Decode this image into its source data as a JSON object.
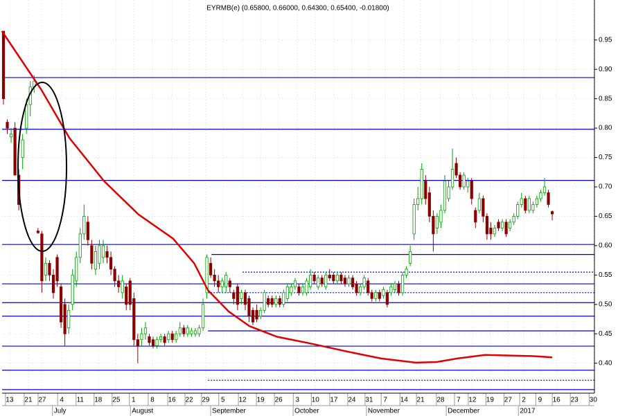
{
  "chart_data": {
    "type": "candlestick",
    "title": "EYRMB(e) (0.65800, 0.66000, 0.64300, 0.65400, -0.01800)",
    "xlim": [
      -0.36,
      154
    ],
    "ylim": [
      0.349,
      1.018
    ],
    "grid": true,
    "yticks": [
      {
        "value": 0.4,
        "label": "0.40"
      },
      0.45,
      {
        "value": 0.5,
        "label": "0.50"
      },
      0.55,
      {
        "value": 0.6,
        "label": "0.60"
      },
      0.65,
      {
        "value": 0.7,
        "label": "0.70"
      },
      0.75,
      {
        "value": 0.8,
        "label": "0.80"
      },
      0.85,
      {
        "value": 0.9,
        "label": "0.90"
      },
      0.95
    ],
    "xticks": [
      {
        "value": 1.6,
        "label": "13"
      },
      {
        "value": 6.5,
        "label": "21"
      },
      {
        "value": 10.1,
        "label": "27"
      },
      {
        "value": 15.2,
        "label": "4"
      },
      {
        "value": 20.0,
        "label": "11"
      },
      {
        "value": 24.7,
        "label": "18"
      },
      {
        "value": 29.4,
        "label": "25"
      },
      {
        "value": 33.9,
        "label": "1"
      },
      {
        "value": 38.8,
        "label": "8"
      },
      {
        "value": 43.9,
        "label": "16"
      },
      {
        "value": 48.4,
        "label": "22"
      },
      {
        "value": 52.7,
        "label": "29"
      },
      {
        "value": 57.2,
        "label": "5"
      },
      {
        "value": 62.3,
        "label": "12"
      },
      {
        "value": 67.0,
        "label": "19"
      },
      {
        "value": 71.7,
        "label": "26"
      },
      {
        "value": 76.6,
        "label": "3"
      },
      {
        "value": 81.3,
        "label": "10"
      },
      {
        "value": 86.1,
        "label": "17"
      },
      {
        "value": 90.8,
        "label": "24"
      },
      {
        "value": 95.3,
        "label": "31"
      },
      {
        "value": 99.5,
        "label": "7"
      },
      {
        "value": 104.4,
        "label": "14"
      },
      {
        "value": 108.7,
        "label": "21"
      },
      {
        "value": 113.9,
        "label": "28"
      },
      {
        "value": 118.6,
        "label": "7"
      },
      {
        "value": 122.2,
        "label": "12"
      },
      {
        "value": 126.8,
        "label": "19"
      },
      {
        "value": 131.5,
        "label": "27"
      },
      {
        "value": 135.6,
        "label": "2"
      },
      {
        "value": 139.8,
        "label": "9"
      },
      {
        "value": 144.1,
        "label": "16"
      },
      {
        "value": 148.8,
        "label": "23"
      },
      {
        "value": 153.7,
        "label": "30"
      }
    ],
    "month_ticks": [
      {
        "value": 13.5,
        "label": "July"
      },
      {
        "value": 33.8,
        "label": "August"
      },
      {
        "value": 54.7,
        "label": "September"
      },
      {
        "value": 76.2,
        "label": "October"
      },
      {
        "value": 95.3,
        "label": "November"
      },
      {
        "value": 116.1,
        "label": "December"
      },
      {
        "value": 134.9,
        "label": "2017"
      }
    ],
    "series": [
      {
        "type": "candlestick",
        "up_color": "#00a000",
        "down_color": "#8b0000",
        "open": [
          0.965,
          0.81,
          0.785,
          0.8,
          0.72,
          0.75,
          0.8,
          0.84,
          0.87,
          0.625,
          0.62,
          0.55,
          0.57,
          0.55,
          0.58,
          0.53,
          0.5,
          0.46,
          0.5,
          0.54,
          0.58,
          0.62,
          0.64,
          0.6,
          0.56,
          0.57,
          0.58,
          0.59,
          0.58,
          0.56,
          0.54,
          0.52,
          0.53,
          0.54,
          0.51,
          0.44,
          0.44,
          0.45,
          0.445,
          0.44,
          0.43,
          0.44,
          0.445,
          0.44,
          0.45,
          0.44,
          0.45,
          0.46,
          0.45,
          0.45,
          0.45,
          0.45,
          0.46,
          0.52,
          0.57,
          0.55,
          0.54,
          0.53,
          0.53,
          0.54,
          0.52,
          0.53,
          0.51,
          0.52,
          0.51,
          0.49,
          0.49,
          0.48,
          0.49,
          0.51,
          0.51,
          0.5,
          0.51,
          0.5,
          0.51,
          0.52,
          0.53,
          0.53,
          0.52,
          0.52,
          0.53,
          0.55,
          0.53,
          0.545,
          0.53,
          0.55,
          0.55,
          0.54,
          0.55,
          0.545,
          0.535,
          0.545,
          0.535,
          0.52,
          0.53,
          0.54,
          0.52,
          0.51,
          0.52,
          0.515,
          0.52,
          0.52,
          0.525,
          0.535,
          0.52,
          0.55,
          0.57,
          0.62,
          0.67,
          0.68,
          0.71,
          0.69,
          0.65,
          0.63,
          0.64,
          0.66,
          0.68,
          0.7,
          0.74,
          0.72,
          0.7,
          0.7,
          0.71,
          0.66,
          0.66,
          0.68,
          0.65,
          0.63,
          0.62,
          0.64,
          0.63,
          0.64,
          0.63,
          0.64,
          0.65,
          0.67,
          0.68,
          0.66,
          0.66,
          0.67,
          0.68,
          0.69,
          0.69,
          0.658
        ],
        "high": [
          0.965,
          0.815,
          0.8,
          0.81,
          0.73,
          0.79,
          0.85,
          0.88,
          0.89,
          0.63,
          0.625,
          0.58,
          0.575,
          0.56,
          0.585,
          0.535,
          0.51,
          0.5,
          0.56,
          0.59,
          0.63,
          0.67,
          0.65,
          0.61,
          0.6,
          0.61,
          0.61,
          0.6,
          0.59,
          0.565,
          0.55,
          0.55,
          0.535,
          0.545,
          0.52,
          0.45,
          0.46,
          0.47,
          0.45,
          0.445,
          0.445,
          0.45,
          0.45,
          0.455,
          0.455,
          0.455,
          0.47,
          0.465,
          0.465,
          0.46,
          0.46,
          0.465,
          0.51,
          0.585,
          0.58,
          0.56,
          0.55,
          0.545,
          0.555,
          0.545,
          0.525,
          0.535,
          0.525,
          0.525,
          0.515,
          0.495,
          0.5,
          0.495,
          0.525,
          0.515,
          0.515,
          0.515,
          0.515,
          0.525,
          0.535,
          0.535,
          0.545,
          0.535,
          0.535,
          0.545,
          0.56,
          0.555,
          0.55,
          0.55,
          0.555,
          0.56,
          0.555,
          0.555,
          0.555,
          0.55,
          0.55,
          0.55,
          0.54,
          0.535,
          0.55,
          0.545,
          0.525,
          0.525,
          0.525,
          0.53,
          0.525,
          0.535,
          0.54,
          0.54,
          0.555,
          0.565,
          0.6,
          0.68,
          0.7,
          0.74,
          0.72,
          0.7,
          0.66,
          0.655,
          0.67,
          0.72,
          0.71,
          0.765,
          0.75,
          0.725,
          0.725,
          0.715,
          0.715,
          0.665,
          0.69,
          0.685,
          0.655,
          0.64,
          0.635,
          0.645,
          0.645,
          0.645,
          0.645,
          0.655,
          0.675,
          0.69,
          0.685,
          0.685,
          0.675,
          0.685,
          0.695,
          0.715,
          0.695,
          0.66
        ],
        "low": [
          0.84,
          0.79,
          0.775,
          0.72,
          0.66,
          0.73,
          0.79,
          0.82,
          0.86,
          0.62,
          0.52,
          0.54,
          0.54,
          0.51,
          0.53,
          0.46,
          0.43,
          0.45,
          0.49,
          0.53,
          0.57,
          0.61,
          0.6,
          0.56,
          0.55,
          0.56,
          0.57,
          0.57,
          0.55,
          0.53,
          0.52,
          0.51,
          0.49,
          0.49,
          0.43,
          0.4,
          0.43,
          0.44,
          0.43,
          0.425,
          0.425,
          0.435,
          0.43,
          0.435,
          0.435,
          0.435,
          0.445,
          0.445,
          0.445,
          0.445,
          0.445,
          0.445,
          0.455,
          0.51,
          0.545,
          0.53,
          0.52,
          0.52,
          0.52,
          0.52,
          0.5,
          0.49,
          0.5,
          0.49,
          0.47,
          0.465,
          0.47,
          0.475,
          0.485,
          0.495,
          0.495,
          0.495,
          0.495,
          0.495,
          0.505,
          0.515,
          0.525,
          0.515,
          0.515,
          0.515,
          0.525,
          0.535,
          0.525,
          0.53,
          0.525,
          0.54,
          0.535,
          0.535,
          0.535,
          0.53,
          0.53,
          0.525,
          0.515,
          0.515,
          0.525,
          0.515,
          0.505,
          0.505,
          0.505,
          0.51,
          0.495,
          0.515,
          0.52,
          0.515,
          0.515,
          0.545,
          0.565,
          0.61,
          0.66,
          0.67,
          0.67,
          0.64,
          0.59,
          0.62,
          0.63,
          0.655,
          0.675,
          0.695,
          0.715,
          0.695,
          0.695,
          0.69,
          0.67,
          0.63,
          0.655,
          0.64,
          0.61,
          0.61,
          0.615,
          0.625,
          0.625,
          0.615,
          0.625,
          0.635,
          0.645,
          0.665,
          0.655,
          0.655,
          0.655,
          0.665,
          0.675,
          0.685,
          0.665,
          0.643
        ],
        "close": [
          0.85,
          0.8,
          0.79,
          0.72,
          0.67,
          0.78,
          0.84,
          0.87,
          0.88,
          0.622,
          0.54,
          0.57,
          0.55,
          0.52,
          0.54,
          0.47,
          0.45,
          0.49,
          0.55,
          0.58,
          0.62,
          0.65,
          0.61,
          0.57,
          0.59,
          0.6,
          0.6,
          0.58,
          0.56,
          0.54,
          0.53,
          0.54,
          0.5,
          0.5,
          0.44,
          0.43,
          0.45,
          0.46,
          0.435,
          0.43,
          0.44,
          0.445,
          0.435,
          0.45,
          0.44,
          0.45,
          0.46,
          0.45,
          0.46,
          0.455,
          0.455,
          0.46,
          0.5,
          0.58,
          0.55,
          0.54,
          0.53,
          0.54,
          0.55,
          0.53,
          0.51,
          0.5,
          0.52,
          0.5,
          0.48,
          0.47,
          0.475,
          0.49,
          0.52,
          0.5,
          0.5,
          0.51,
          0.5,
          0.52,
          0.53,
          0.53,
          0.54,
          0.52,
          0.53,
          0.54,
          0.55,
          0.54,
          0.545,
          0.535,
          0.55,
          0.545,
          0.54,
          0.55,
          0.54,
          0.535,
          0.545,
          0.53,
          0.52,
          0.53,
          0.545,
          0.52,
          0.51,
          0.52,
          0.51,
          0.525,
          0.5,
          0.53,
          0.535,
          0.52,
          0.55,
          0.56,
          0.59,
          0.67,
          0.68,
          0.73,
          0.68,
          0.65,
          0.62,
          0.65,
          0.66,
          0.71,
          0.7,
          0.73,
          0.72,
          0.7,
          0.72,
          0.71,
          0.68,
          0.64,
          0.68,
          0.65,
          0.62,
          0.62,
          0.63,
          0.63,
          0.64,
          0.62,
          0.64,
          0.65,
          0.67,
          0.68,
          0.66,
          0.68,
          0.67,
          0.68,
          0.69,
          0.7,
          0.67,
          0.654
        ]
      },
      {
        "type": "line",
        "color": "#e00000",
        "x": [
          -0.4,
          9.9,
          17.2,
          26.2,
          35.2,
          44.2,
          49.7,
          53.3,
          58.7,
          64.1,
          71.3,
          80.4,
          89.4,
          98.4,
          107.4,
          112.9,
          118.3,
          125.5,
          132.7,
          138.1,
          143
        ],
        "values": [
          0.965,
          0.865,
          0.783,
          0.71,
          0.653,
          0.612,
          0.57,
          0.524,
          0.488,
          0.463,
          0.445,
          0.433,
          0.42,
          0.408,
          0.401,
          0.402,
          0.408,
          0.414,
          0.413,
          0.412,
          0.41
        ]
      }
    ],
    "levels": [
      {
        "value": 0.886,
        "color": "#0000cc",
        "style": "solid"
      },
      {
        "value": 0.798,
        "color": "#0000cc",
        "style": "solid"
      },
      {
        "value": 0.711,
        "color": "#0000cc",
        "style": "solid"
      },
      {
        "value": 0.602,
        "color": "#0000cc",
        "style": "solid"
      },
      {
        "value": 0.535,
        "color": "#0000cc",
        "style": "solid"
      },
      {
        "value": 0.503,
        "color": "#0000cc",
        "style": "solid"
      },
      {
        "value": 0.48,
        "color": "#0000cc",
        "style": "solid"
      },
      {
        "value": 0.429,
        "color": "#0000cc",
        "style": "solid"
      },
      {
        "value": 0.388,
        "color": "#0000cc",
        "style": "solid"
      },
      {
        "value": 0.355,
        "color": "#0000cc",
        "style": "solid"
      },
      {
        "value": 0.585,
        "start": 54.2,
        "color": "#0000cc",
        "style": "solid"
      },
      {
        "value": 0.455,
        "start": 53.3,
        "color": "#0000cc",
        "style": "solid"
      },
      {
        "value": 0.555,
        "start": 62.3,
        "color": "#0000cc",
        "style": "dotted"
      },
      {
        "value": 0.52,
        "start": 53.3,
        "color": "#0000cc",
        "style": "dotted"
      },
      {
        "value": 0.371,
        "start": 53.3,
        "color": "#0000cc",
        "style": "dotted"
      }
    ]
  }
}
